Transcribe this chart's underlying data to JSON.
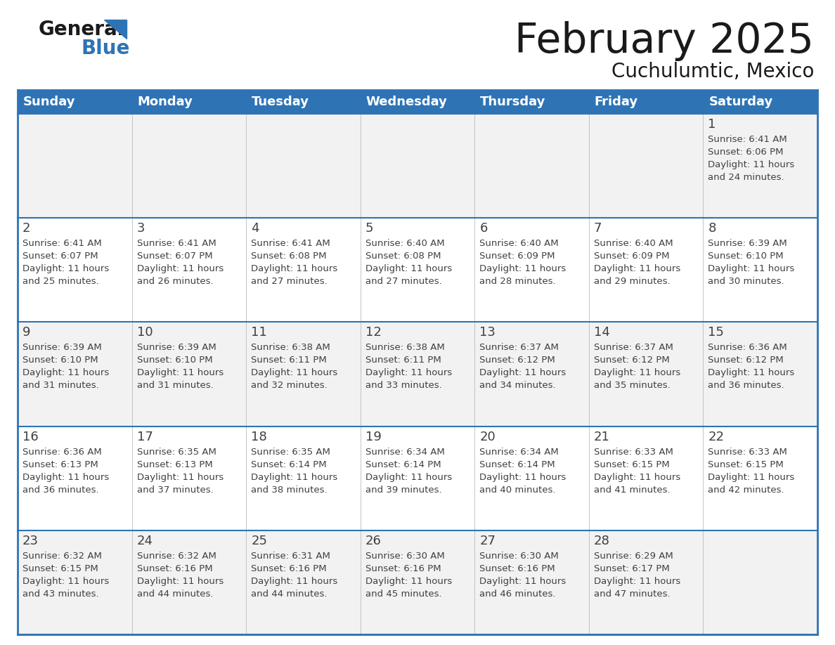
{
  "title": "February 2025",
  "subtitle": "Cuchulumtic, Mexico",
  "days_of_week": [
    "Sunday",
    "Monday",
    "Tuesday",
    "Wednesday",
    "Thursday",
    "Friday",
    "Saturday"
  ],
  "header_bg": "#2E74B5",
  "header_text": "#FFFFFF",
  "row_bg_odd": "#F2F2F2",
  "row_bg_even": "#FFFFFF",
  "border_color": "#2E74B5",
  "text_color": "#404040",
  "calendar_data": [
    [
      null,
      null,
      null,
      null,
      null,
      null,
      {
        "day": 1,
        "sunrise": "6:41 AM",
        "sunset": "6:06 PM",
        "daylight": "11 hours and 24 minutes"
      }
    ],
    [
      {
        "day": 2,
        "sunrise": "6:41 AM",
        "sunset": "6:07 PM",
        "daylight": "11 hours and 25 minutes"
      },
      {
        "day": 3,
        "sunrise": "6:41 AM",
        "sunset": "6:07 PM",
        "daylight": "11 hours and 26 minutes"
      },
      {
        "day": 4,
        "sunrise": "6:41 AM",
        "sunset": "6:08 PM",
        "daylight": "11 hours and 27 minutes"
      },
      {
        "day": 5,
        "sunrise": "6:40 AM",
        "sunset": "6:08 PM",
        "daylight": "11 hours and 27 minutes"
      },
      {
        "day": 6,
        "sunrise": "6:40 AM",
        "sunset": "6:09 PM",
        "daylight": "11 hours and 28 minutes"
      },
      {
        "day": 7,
        "sunrise": "6:40 AM",
        "sunset": "6:09 PM",
        "daylight": "11 hours and 29 minutes"
      },
      {
        "day": 8,
        "sunrise": "6:39 AM",
        "sunset": "6:10 PM",
        "daylight": "11 hours and 30 minutes"
      }
    ],
    [
      {
        "day": 9,
        "sunrise": "6:39 AM",
        "sunset": "6:10 PM",
        "daylight": "11 hours and 31 minutes"
      },
      {
        "day": 10,
        "sunrise": "6:39 AM",
        "sunset": "6:10 PM",
        "daylight": "11 hours and 31 minutes"
      },
      {
        "day": 11,
        "sunrise": "6:38 AM",
        "sunset": "6:11 PM",
        "daylight": "11 hours and 32 minutes"
      },
      {
        "day": 12,
        "sunrise": "6:38 AM",
        "sunset": "6:11 PM",
        "daylight": "11 hours and 33 minutes"
      },
      {
        "day": 13,
        "sunrise": "6:37 AM",
        "sunset": "6:12 PM",
        "daylight": "11 hours and 34 minutes"
      },
      {
        "day": 14,
        "sunrise": "6:37 AM",
        "sunset": "6:12 PM",
        "daylight": "11 hours and 35 minutes"
      },
      {
        "day": 15,
        "sunrise": "6:36 AM",
        "sunset": "6:12 PM",
        "daylight": "11 hours and 36 minutes"
      }
    ],
    [
      {
        "day": 16,
        "sunrise": "6:36 AM",
        "sunset": "6:13 PM",
        "daylight": "11 hours and 36 minutes"
      },
      {
        "day": 17,
        "sunrise": "6:35 AM",
        "sunset": "6:13 PM",
        "daylight": "11 hours and 37 minutes"
      },
      {
        "day": 18,
        "sunrise": "6:35 AM",
        "sunset": "6:14 PM",
        "daylight": "11 hours and 38 minutes"
      },
      {
        "day": 19,
        "sunrise": "6:34 AM",
        "sunset": "6:14 PM",
        "daylight": "11 hours and 39 minutes"
      },
      {
        "day": 20,
        "sunrise": "6:34 AM",
        "sunset": "6:14 PM",
        "daylight": "11 hours and 40 minutes"
      },
      {
        "day": 21,
        "sunrise": "6:33 AM",
        "sunset": "6:15 PM",
        "daylight": "11 hours and 41 minutes"
      },
      {
        "day": 22,
        "sunrise": "6:33 AM",
        "sunset": "6:15 PM",
        "daylight": "11 hours and 42 minutes"
      }
    ],
    [
      {
        "day": 23,
        "sunrise": "6:32 AM",
        "sunset": "6:15 PM",
        "daylight": "11 hours and 43 minutes"
      },
      {
        "day": 24,
        "sunrise": "6:32 AM",
        "sunset": "6:16 PM",
        "daylight": "11 hours and 44 minutes"
      },
      {
        "day": 25,
        "sunrise": "6:31 AM",
        "sunset": "6:16 PM",
        "daylight": "11 hours and 44 minutes"
      },
      {
        "day": 26,
        "sunrise": "6:30 AM",
        "sunset": "6:16 PM",
        "daylight": "11 hours and 45 minutes"
      },
      {
        "day": 27,
        "sunrise": "6:30 AM",
        "sunset": "6:16 PM",
        "daylight": "11 hours and 46 minutes"
      },
      {
        "day": 28,
        "sunrise": "6:29 AM",
        "sunset": "6:17 PM",
        "daylight": "11 hours and 47 minutes"
      },
      null
    ]
  ]
}
